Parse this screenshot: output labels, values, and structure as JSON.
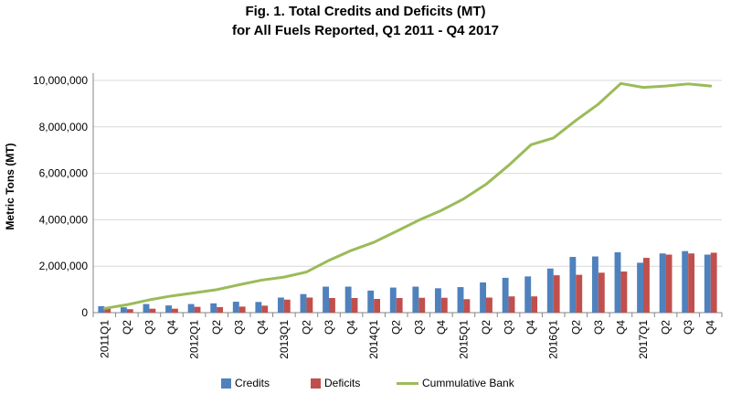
{
  "chart_data": {
    "type": "bar",
    "title_line1": "Fig. 1. Total Credits and Deficits (MT)",
    "title_line2": "for All Fuels Reported, Q1 2011 - Q4 2017",
    "xlabel": "",
    "ylabel": "Metric Tons (MT)",
    "ylim": [
      0,
      10000000
    ],
    "yticks": [
      0,
      2000000,
      4000000,
      6000000,
      8000000,
      10000000
    ],
    "ytick_labels": [
      "0",
      "2,000,000",
      "4,000,000",
      "6,000,000",
      "8,000,000",
      "10,000,000"
    ],
    "grid": true,
    "legend_position": "bottom",
    "categories": [
      "2011Q1",
      "Q2",
      "Q3",
      "Q4",
      "2012Q1",
      "Q2",
      "Q3",
      "Q4",
      "2013Q1",
      "Q2",
      "Q3",
      "Q4",
      "2014Q1",
      "Q2",
      "Q3",
      "Q4",
      "2015Q1",
      "Q2",
      "Q3",
      "Q4",
      "2016Q1",
      "Q2",
      "Q3",
      "Q4",
      "2017Q1",
      "Q2",
      "Q3",
      "Q4"
    ],
    "series": [
      {
        "name": "Credits",
        "type": "bar",
        "color": "#4f81bd",
        "values": [
          280000,
          230000,
          370000,
          310000,
          370000,
          400000,
          470000,
          460000,
          650000,
          800000,
          1120000,
          1120000,
          950000,
          1080000,
          1120000,
          1050000,
          1100000,
          1300000,
          1500000,
          1560000,
          1900000,
          2400000,
          2420000,
          2600000,
          2150000,
          2550000,
          2650000,
          2500000
        ]
      },
      {
        "name": "Deficits",
        "type": "bar",
        "color": "#c0504d",
        "values": [
          170000,
          150000,
          170000,
          170000,
          250000,
          240000,
          260000,
          300000,
          560000,
          650000,
          630000,
          630000,
          590000,
          630000,
          640000,
          640000,
          580000,
          650000,
          700000,
          700000,
          1610000,
          1630000,
          1720000,
          1770000,
          2360000,
          2500000,
          2550000,
          2580000
        ]
      },
      {
        "name": "Cummulative Bank",
        "type": "line",
        "color": "#9bbb59",
        "values": [
          180000,
          340000,
          550000,
          720000,
          850000,
          990000,
          1200000,
          1400000,
          1530000,
          1750000,
          2250000,
          2680000,
          3030000,
          3500000,
          3980000,
          4400000,
          4900000,
          5530000,
          6340000,
          7230000,
          7520000,
          8280000,
          8980000,
          9870000,
          9700000,
          9760000,
          9850000,
          9760000
        ]
      }
    ]
  }
}
